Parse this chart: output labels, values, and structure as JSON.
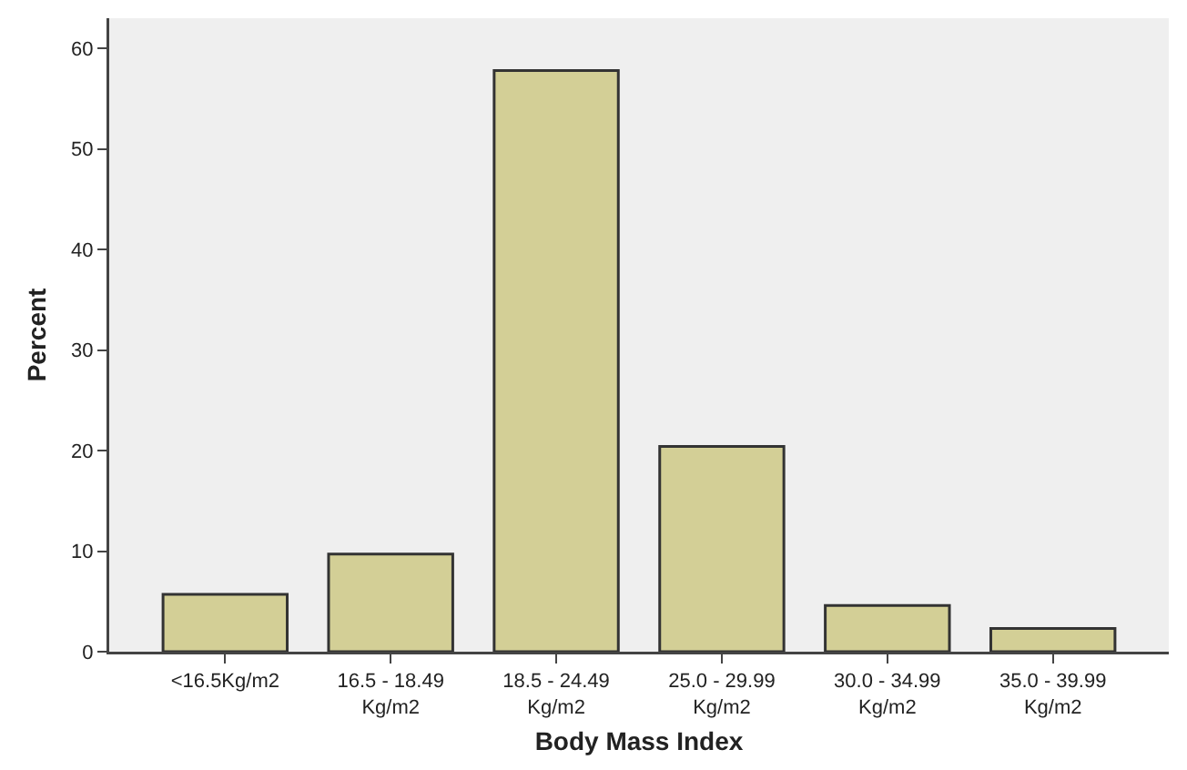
{
  "chart_data": {
    "type": "bar",
    "xlabel": "Body Mass Index",
    "ylabel": "Percent",
    "categories": [
      "<16.5Kg/m2",
      "16.5 - 18.49\nKg/m2",
      "18.5 - 24.49\nKg/m2",
      "25.0 - 29.99\nKg/m2",
      "30.0 - 34.99\nKg/m2",
      "35.0 - 39.99\nKg/m2"
    ],
    "values": [
      5.7,
      9.7,
      57.8,
      20.4,
      4.6,
      2.3
    ],
    "color": "#d3cf96",
    "ylim": [
      0,
      63
    ],
    "yticks": [
      0,
      10,
      20,
      30,
      40,
      50,
      60
    ],
    "grid": false
  }
}
